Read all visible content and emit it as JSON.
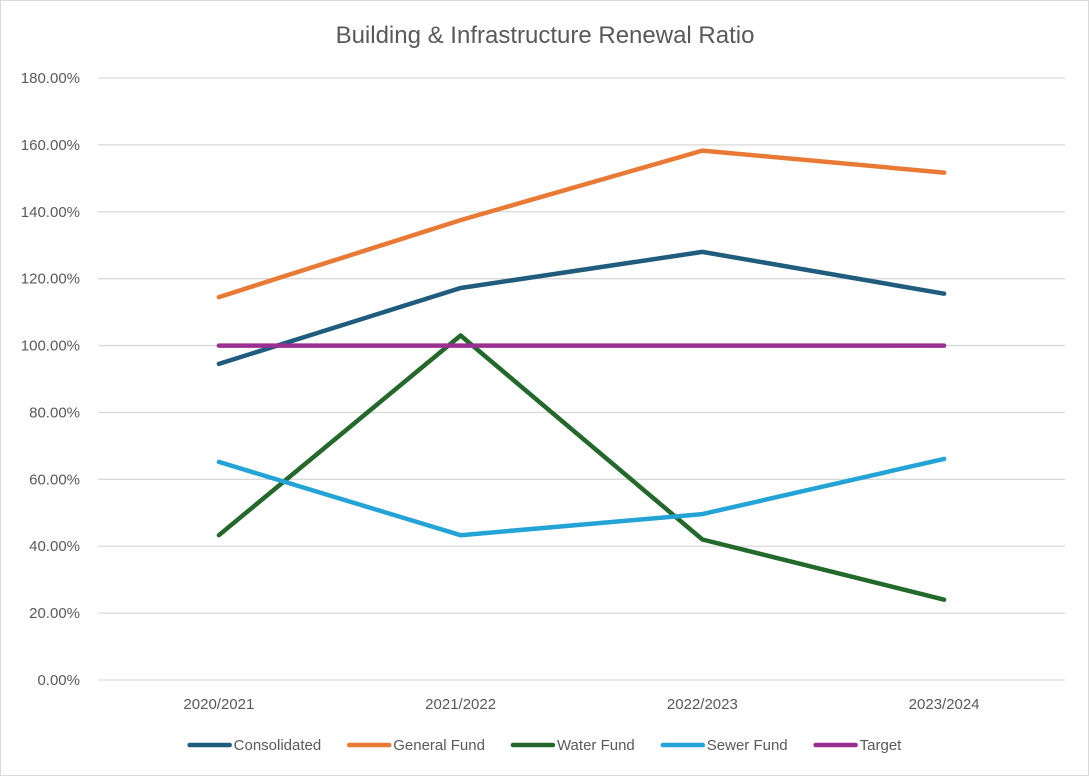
{
  "chart_data": {
    "type": "line",
    "title": "Building & Infrastructure Renewal Ratio",
    "xlabel": "",
    "ylabel": "",
    "categories": [
      "2020/2021",
      "2021/2022",
      "2022/2023",
      "2023/2024"
    ],
    "ylim": [
      0,
      180
    ],
    "yticks": [
      0,
      20,
      40,
      60,
      80,
      100,
      120,
      140,
      160,
      180
    ],
    "ytick_labels": [
      "0.00%",
      "20.00%",
      "40.00%",
      "60.00%",
      "80.00%",
      "100.00%",
      "120.00%",
      "140.00%",
      "160.00%",
      "180.00%"
    ],
    "grid": true,
    "legend_position": "bottom",
    "series": [
      {
        "name": "Consolidated",
        "color": "#1f5c7e",
        "values": [
          94.5,
          117.2,
          128.0,
          115.5
        ]
      },
      {
        "name": "General Fund",
        "color": "#e97a35",
        "values": [
          114.5,
          137.5,
          158.3,
          151.7
        ]
      },
      {
        "name": "Water Fund",
        "color": "#22692b",
        "values": [
          43.3,
          103.0,
          42.0,
          24.0
        ]
      },
      {
        "name": "Sewer Fund",
        "color": "#24a4d6",
        "values": [
          65.2,
          43.3,
          49.6,
          66.1
        ]
      },
      {
        "name": "Target",
        "color": "#9a2f92",
        "values": [
          100,
          100,
          100,
          100
        ]
      }
    ]
  }
}
